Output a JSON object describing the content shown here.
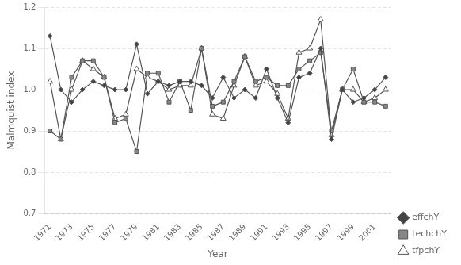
{
  "chart_data": {
    "type": "line",
    "x": [
      1971,
      1972,
      1973,
      1974,
      1975,
      1976,
      1977,
      1978,
      1979,
      1980,
      1981,
      1982,
      1983,
      1984,
      1985,
      1986,
      1987,
      1988,
      1989,
      1990,
      1991,
      1992,
      1993,
      1994,
      1995,
      1996,
      1997,
      1998,
      1999,
      2000,
      2001,
      2002
    ],
    "series": [
      {
        "name": "effchY",
        "color": "#444444",
        "marker": "diamond",
        "values": [
          1.13,
          1.0,
          0.97,
          1.0,
          1.02,
          1.01,
          1.0,
          1.0,
          1.11,
          0.99,
          1.02,
          1.01,
          1.02,
          1.02,
          1.01,
          0.98,
          1.03,
          0.98,
          1.0,
          0.98,
          1.05,
          0.98,
          0.92,
          1.03,
          1.04,
          1.1,
          0.88,
          1.0,
          0.97,
          0.98,
          1.0,
          1.03
        ]
      },
      {
        "name": "techchY",
        "color": "#888888",
        "marker": "square",
        "values": [
          0.9,
          0.88,
          1.03,
          1.07,
          1.07,
          1.03,
          0.92,
          0.93,
          0.85,
          1.04,
          1.04,
          0.97,
          1.02,
          0.95,
          1.1,
          0.96,
          0.97,
          1.02,
          1.08,
          1.02,
          1.03,
          1.01,
          1.01,
          1.05,
          1.07,
          1.09,
          0.9,
          1.0,
          1.05,
          0.97,
          0.97,
          0.96
        ]
      },
      {
        "name": "tfpchY",
        "color": "#ffffff",
        "marker": "triangle",
        "values": [
          1.02,
          0.88,
          1.0,
          1.07,
          1.05,
          1.03,
          0.93,
          0.94,
          1.05,
          1.03,
          1.02,
          1.0,
          1.01,
          1.01,
          1.1,
          0.94,
          0.93,
          1.01,
          1.08,
          1.01,
          1.02,
          0.99,
          0.93,
          1.09,
          1.1,
          1.17,
          0.89,
          1.0,
          1.0,
          0.97,
          0.98,
          1.0
        ]
      }
    ],
    "color": "#555555",
    "xlabel": "Year",
    "ylabel": "Malmquist index",
    "xlim": [
      1970.5,
      2002.5
    ],
    "xticks": [
      1971,
      1973,
      1975,
      1977,
      1979,
      1981,
      1983,
      1985,
      1987,
      1989,
      1991,
      1993,
      1995,
      1997,
      1999,
      2001
    ],
    "ylim": [
      0.7,
      1.2
    ],
    "yticks": [
      0.7,
      0.8,
      0.9,
      {
        "value": 1,
        "label": "1.0"
      },
      1.1,
      1.2
    ],
    "grid": true,
    "legend": "lower right"
  }
}
